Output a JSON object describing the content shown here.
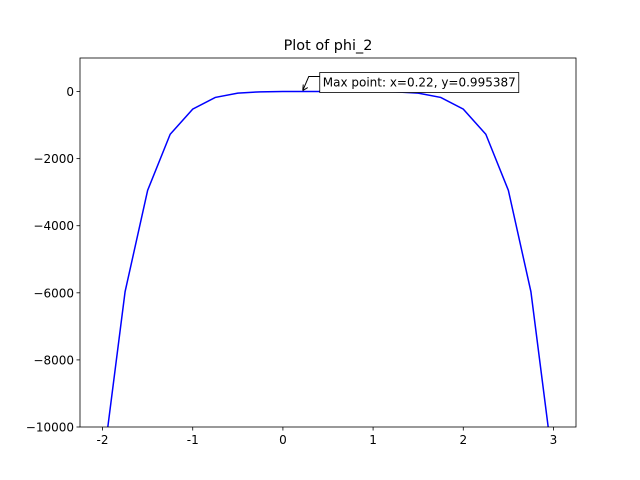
{
  "chart_data": {
    "type": "line",
    "title": "Plot of phi_2",
    "x": [
      -2,
      -1.75,
      -1.5,
      -1.25,
      -1,
      -0.75,
      -0.5,
      -0.25,
      0,
      0.25,
      0.5,
      0.75,
      1,
      1.25,
      1.5,
      1.75,
      2,
      2.25,
      2.5,
      2.75,
      3
    ],
    "series": [
      {
        "color": "#0000ff",
        "values": [
          -11230,
          -5966,
          -2944,
          -1274,
          -524,
          -175,
          -46,
          -8,
          0,
          1,
          1,
          1,
          0,
          -8,
          -46,
          -175,
          -524,
          -1274,
          -2944,
          -5966,
          -11230
        ]
      }
    ],
    "xlim": [
      -2.25,
      3.25
    ],
    "xticks": [
      -2,
      -1,
      0,
      1,
      2,
      3
    ],
    "ylim": [
      -10000,
      1000
    ],
    "yticks": [
      {
        "value": -10000,
        "label": "−10000"
      },
      {
        "value": -8000,
        "label": "−8000"
      },
      {
        "value": -6000,
        "label": "−6000"
      },
      {
        "value": -4000,
        "label": "−4000"
      },
      {
        "value": -2000,
        "label": "−2000"
      },
      0
    ],
    "annotation": {
      "text": "Max point: x=0.22, y=0.995387",
      "x": 0.22,
      "y": 0.995387
    }
  }
}
